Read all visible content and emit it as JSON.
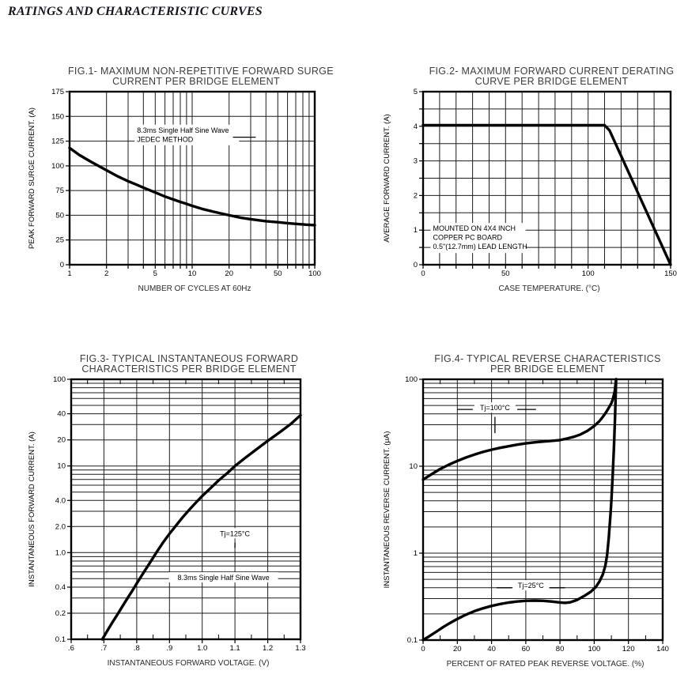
{
  "page_title": "RATINGS AND CHARACTERISTIC CURVES",
  "colors": {
    "ink": "#000000",
    "grid": "#1c1c1c",
    "background": "#ffffff",
    "annotation_bg": "#ffffff"
  },
  "chart_data": [
    {
      "id": "fig1",
      "type": "line",
      "title": [
        "FIG.1- MAXIMUM NON-REPETITIVE FORWARD SURGE",
        "CURRENT PER BRIDGE ELEMENT"
      ],
      "xlabel": "NUMBER OF CYCLES AT 60Hz",
      "ylabel": "PEAK FORWARD SURGE CURRENT. (A)",
      "x_axis": {
        "scale": "log",
        "min": 1,
        "max": 100,
        "outer": "grid",
        "tick_values": [
          1,
          2,
          5,
          10,
          20,
          50,
          100
        ],
        "tick_labels": [
          "1",
          "2",
          "5",
          "10",
          "20",
          "50",
          "100"
        ]
      },
      "y_axis": {
        "scale": "linear",
        "min": 0,
        "max": 175,
        "grid_step": 25,
        "outer": "grid",
        "tick_values": [
          0,
          25,
          50,
          75,
          100,
          125,
          150,
          175
        ],
        "tick_labels": [
          "0",
          "25",
          "50",
          "75",
          "100",
          "125",
          "150",
          "175"
        ]
      },
      "series": [
        {
          "name": "peak-forward-surge-current",
          "points": [
            [
              1,
              118
            ],
            [
              1.2,
              111
            ],
            [
              1.5,
              104
            ],
            [
              2,
              95.5
            ],
            [
              2.5,
              89
            ],
            [
              3,
              84.5
            ],
            [
              3.5,
              81
            ],
            [
              4,
              78
            ],
            [
              5,
              73
            ],
            [
              6,
              69
            ],
            [
              7,
              66
            ],
            [
              8,
              63.5
            ],
            [
              9,
              61.5
            ],
            [
              10,
              59.5
            ],
            [
              12,
              56.5
            ],
            [
              15,
              53.5
            ],
            [
              20,
              50
            ],
            [
              25,
              47.5
            ],
            [
              30,
              46
            ],
            [
              40,
              44
            ],
            [
              50,
              43
            ],
            [
              60,
              42
            ],
            [
              70,
              41.3
            ],
            [
              85,
              40.5
            ],
            [
              100,
              40
            ]
          ]
        }
      ],
      "annotations": [
        {
          "lines": [
            "8.3ms Single Half Sine Wave",
            "JEDEC METHOD"
          ],
          "x": 3.55,
          "y_top": 140,
          "anchor": "start",
          "w": 132,
          "h": 26,
          "leaders": [
            [
              21.5,
              129,
              33,
              129
            ]
          ]
        }
      ]
    },
    {
      "id": "fig2",
      "type": "line",
      "title": [
        "FIG.2- MAXIMUM FORWARD CURRENT DERATING",
        "CURVE PER BRIDGE ELEMENT"
      ],
      "xlabel": "CASE TEMPERATURE. (°C)",
      "ylabel": "AVERAGE FORWARD CURRENT. (A)",
      "x_axis": {
        "scale": "linear",
        "min": 0,
        "max": 150,
        "grid_step": 10,
        "outer": "grid",
        "tick_values": [
          0,
          50,
          100,
          150
        ],
        "tick_labels": [
          "0",
          "50",
          "100",
          "150"
        ]
      },
      "y_axis": {
        "scale": "linear",
        "min": 0,
        "max": 5,
        "grid_step": 0.5,
        "outer": "grid",
        "tick_values": [
          0,
          1,
          2,
          3,
          4,
          5
        ],
        "tick_labels": [
          "0",
          "1",
          "2",
          "3",
          "4",
          "5"
        ]
      },
      "series": [
        {
          "name": "average-forward-current-derating",
          "points": [
            [
              0,
              4.03
            ],
            [
              110,
              4.03
            ],
            [
              113,
              3.88
            ],
            [
              150,
              0
            ]
          ]
        }
      ],
      "annotations": [
        {
          "lines": [
            "MOUNTED ON 4X4 INCH",
            "COPPER PC BOARD",
            "0.5\"(12.7mm) LEAD LENGTH"
          ],
          "x": 6,
          "y_top": 1.16,
          "anchor": "start",
          "w": 120,
          "h": 38,
          "leaders": []
        }
      ]
    },
    {
      "id": "fig3",
      "type": "line",
      "title": [
        "FIG.3- TYPICAL INSTANTANEOUS FORWARD",
        "CHARACTERISTICS PER BRIDGE ELEMENT"
      ],
      "xlabel": "INSTANTANEOUS FORWARD VOLTAGE. (V)",
      "ylabel": "INSTANTANEOUS FORWARD CURRENT. (A)",
      "x_axis": {
        "scale": "linear",
        "min": 0.6,
        "max": 1.3,
        "grid_step": 0.1,
        "outer": "ticks",
        "minor_ticks": [
          0.65,
          0.75,
          0.85,
          0.95,
          1.05,
          1.15,
          1.25
        ],
        "tick_values": [
          0.6,
          0.7,
          0.8,
          0.9,
          1.0,
          1.1,
          1.2,
          1.3
        ],
        "tick_labels": [
          ".6",
          ".7",
          ".8",
          ".9",
          "1.0",
          "1.1",
          "1.2",
          "1.3"
        ]
      },
      "y_axis": {
        "scale": "log",
        "min": 0.1,
        "max": 100,
        "outer": "ticks",
        "tick_values": [
          100,
          40,
          20,
          10,
          4,
          2,
          1,
          0.4,
          0.2,
          0.1
        ],
        "tick_labels": [
          "100",
          "40",
          "20",
          "10",
          "4.0",
          "2.0",
          "1.0",
          "0.4",
          "0.2",
          "0.1"
        ]
      },
      "series": [
        {
          "name": "instantaneous-forward-current",
          "points": [
            [
              0.695,
              0.1
            ],
            [
              0.71,
              0.125
            ],
            [
              0.725,
              0.155
            ],
            [
              0.74,
              0.19
            ],
            [
              0.755,
              0.235
            ],
            [
              0.77,
              0.29
            ],
            [
              0.785,
              0.355
            ],
            [
              0.8,
              0.44
            ],
            [
              0.82,
              0.58
            ],
            [
              0.84,
              0.76
            ],
            [
              0.86,
              1.0
            ],
            [
              0.88,
              1.3
            ],
            [
              0.9,
              1.65
            ],
            [
              0.92,
              2.05
            ],
            [
              0.94,
              2.55
            ],
            [
              0.96,
              3.1
            ],
            [
              0.98,
              3.75
            ],
            [
              1.0,
              4.5
            ],
            [
              1.02,
              5.3
            ],
            [
              1.05,
              6.8
            ],
            [
              1.08,
              8.5
            ],
            [
              1.1,
              10
            ],
            [
              1.13,
              12.3
            ],
            [
              1.16,
              15
            ],
            [
              1.2,
              19.5
            ],
            [
              1.24,
              25
            ],
            [
              1.27,
              30.5
            ],
            [
              1.3,
              38.5
            ]
          ]
        }
      ],
      "annotations": [
        {
          "lines": [
            "Tj=125°C"
          ],
          "x": 1.1,
          "y_top": 1.84,
          "anchor": "middle",
          "w": 50,
          "h": 13,
          "leaders": [
            [
              1.1,
              1.3,
              1.1,
              1.13
            ]
          ]
        },
        {
          "lines": [
            "8.3ms Single Half Sine Wave"
          ],
          "x": 1.065,
          "y_top": 0.57,
          "anchor": "middle",
          "w": 138,
          "h": 13,
          "leaders": []
        }
      ]
    },
    {
      "id": "fig4",
      "type": "line",
      "title": [
        "FIG.4- TYPICAL REVERSE CHARACTERISTICS",
        "PER BRIDGE ELEMENT"
      ],
      "xlabel": "PERCENT OF RATED PEAK REVERSE VOLTAGE. (%)",
      "ylabel": "INSTANTANEOUS REVERSE CURRENT. (μA)",
      "x_axis": {
        "scale": "linear",
        "min": 0,
        "max": 140,
        "grid_step": 20,
        "outer": "ticks",
        "minor_ticks": [
          10,
          30,
          50,
          70,
          90,
          110,
          130
        ],
        "tick_values": [
          0,
          20,
          40,
          60,
          80,
          100,
          120,
          140
        ],
        "tick_labels": [
          "0",
          "20",
          "40",
          "60",
          "80",
          "100",
          "120",
          "140"
        ]
      },
      "y_axis": {
        "scale": "log",
        "min": 0.1,
        "max": 100,
        "outer": "ticks",
        "tick_values": [
          100,
          10,
          1,
          0.1
        ],
        "tick_labels": [
          "100",
          "10",
          "1",
          "0.1"
        ]
      },
      "series": [
        {
          "name": "reverse-current-tj-100c",
          "points": [
            [
              0,
              7
            ],
            [
              5,
              8.1
            ],
            [
              10,
              9.3
            ],
            [
              15,
              10.4
            ],
            [
              20,
              11.5
            ],
            [
              25,
              12.6
            ],
            [
              30,
              13.6
            ],
            [
              35,
              14.6
            ],
            [
              40,
              15.5
            ],
            [
              45,
              16.3
            ],
            [
              50,
              17
            ],
            [
              55,
              17.7
            ],
            [
              60,
              18.3
            ],
            [
              65,
              18.8
            ],
            [
              70,
              19.2
            ],
            [
              75,
              19.6
            ],
            [
              80,
              20
            ],
            [
              84,
              20.8
            ],
            [
              88,
              21.8
            ],
            [
              92,
              23.2
            ],
            [
              96,
              25.5
            ],
            [
              100,
              29
            ],
            [
              103,
              33
            ],
            [
              105,
              37
            ],
            [
              107,
              42
            ],
            [
              108.5,
              47
            ],
            [
              110,
              53
            ],
            [
              111,
              60
            ],
            [
              112,
              73
            ],
            [
              112.8,
              100
            ]
          ]
        },
        {
          "name": "reverse-current-tj-25c",
          "points": [
            [
              0,
              0.1
            ],
            [
              4,
              0.112
            ],
            [
              8,
              0.126
            ],
            [
              12,
              0.142
            ],
            [
              16,
              0.158
            ],
            [
              20,
              0.175
            ],
            [
              25,
              0.196
            ],
            [
              30,
              0.215
            ],
            [
              35,
              0.232
            ],
            [
              40,
              0.247
            ],
            [
              45,
              0.26
            ],
            [
              50,
              0.27
            ],
            [
              55,
              0.278
            ],
            [
              60,
              0.283
            ],
            [
              65,
              0.285
            ],
            [
              70,
              0.283
            ],
            [
              75,
              0.278
            ],
            [
              80,
              0.271
            ],
            [
              83,
              0.268
            ],
            [
              86,
              0.272
            ],
            [
              90,
              0.29
            ],
            [
              94,
              0.32
            ],
            [
              98,
              0.36
            ],
            [
              101,
              0.41
            ],
            [
              103,
              0.47
            ],
            [
              105,
              0.57
            ],
            [
              106.5,
              0.72
            ],
            [
              107.5,
              0.95
            ],
            [
              108.5,
              1.5
            ],
            [
              109.5,
              2.8
            ],
            [
              110,
              4
            ],
            [
              110.8,
              8
            ],
            [
              111.5,
              16
            ],
            [
              112.2,
              38
            ],
            [
              112.8,
              100
            ]
          ]
        }
      ],
      "annotations": [
        {
          "lines": [
            "Tj=100°C"
          ],
          "x": 42,
          "y_top": 52,
          "anchor": "middle",
          "w": 52,
          "h": 13,
          "leaders": [
            [
              20,
              45,
              29,
              45
            ],
            [
              55,
              45,
              66,
              45
            ],
            [
              42,
              37,
              42,
              24
            ]
          ]
        },
        {
          "lines": [
            "Tj=25°C"
          ],
          "x": 63,
          "y_top": 0.47,
          "anchor": "middle",
          "w": 46,
          "h": 13,
          "leaders": [
            [
              43,
              0.4,
              52,
              0.4
            ],
            [
              74,
              0.4,
              83,
              0.4
            ]
          ]
        }
      ]
    }
  ]
}
